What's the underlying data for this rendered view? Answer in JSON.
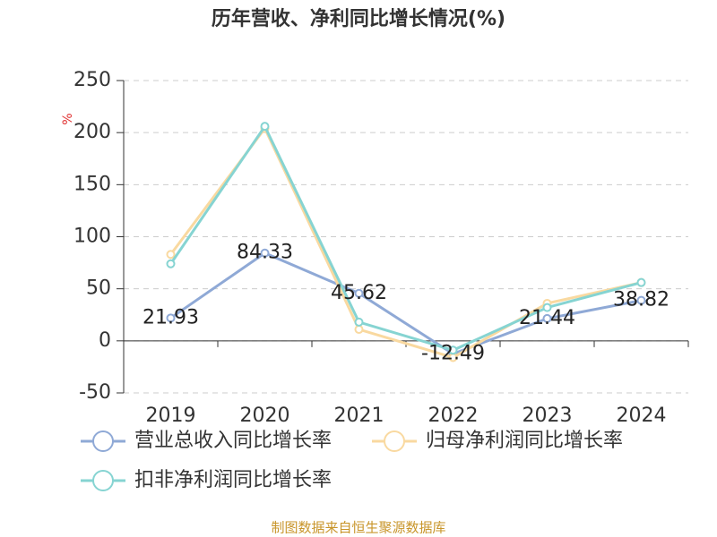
{
  "chart_data": {
    "type": "line",
    "title": "历年营收、净利同比增长情况(%)",
    "ylabel": "%",
    "categories": [
      "2019",
      "2020",
      "2021",
      "2022",
      "2023",
      "2024"
    ],
    "series": [
      {
        "name": "营业总收入同比增长率",
        "color": "#8fa9d6",
        "values": [
          21.93,
          84.33,
          45.62,
          -12.49,
          21.44,
          38.82
        ],
        "data_labels": true
      },
      {
        "name": "归母净利润同比增长率",
        "color": "#f9d9a0",
        "values": [
          83,
          204,
          11,
          -16,
          36,
          56
        ]
      },
      {
        "name": "扣非净利润同比增长率",
        "color": "#86d4d2",
        "values": [
          74,
          206,
          18,
          -9,
          32,
          56
        ]
      }
    ],
    "ylim": [
      -50,
      250
    ],
    "yticks": [
      -50,
      0,
      50,
      100,
      150,
      200,
      250
    ],
    "grid": true,
    "source": "制图数据来自恒生聚源数据库"
  }
}
